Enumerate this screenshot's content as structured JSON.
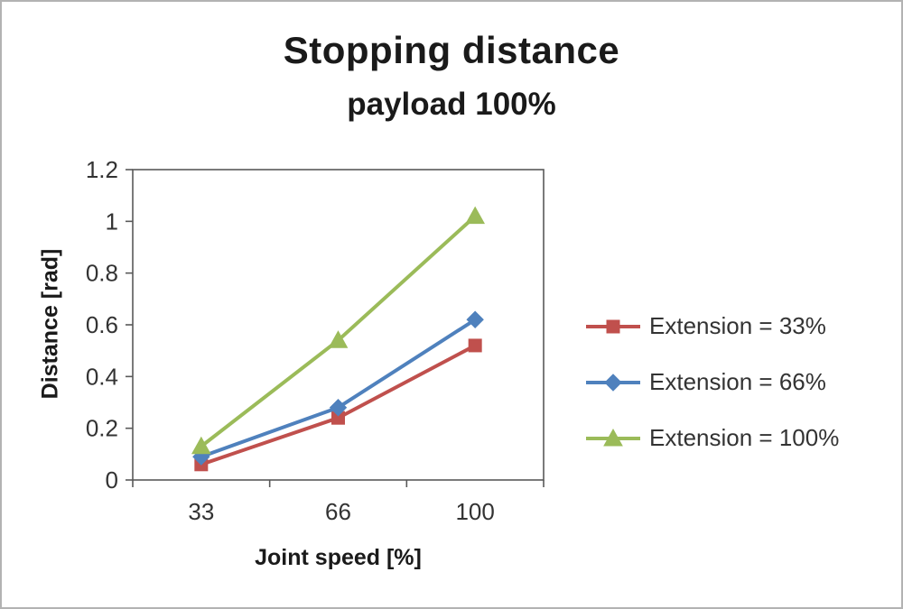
{
  "chart_data": {
    "type": "line",
    "title": "Stopping distance",
    "subtitle": "payload 100%",
    "xlabel": "Joint speed [%]",
    "ylabel": "Distance [rad]",
    "categories": [
      "33",
      "66",
      "100"
    ],
    "ylim": [
      0,
      1.2
    ],
    "ytick_step": 0.2,
    "yticks": [
      0,
      0.2,
      0.4,
      0.6,
      0.8,
      1,
      1.2
    ],
    "grid": false,
    "legend_position": "right",
    "series": [
      {
        "name": "Extension = 33%",
        "marker": "square",
        "color": "#c0504d",
        "values": [
          0.06,
          0.24,
          0.52
        ]
      },
      {
        "name": "Extension = 66%",
        "marker": "diamond",
        "color": "#4f81bd",
        "values": [
          0.09,
          0.28,
          0.62
        ]
      },
      {
        "name": "Extension = 100%",
        "marker": "triangle",
        "color": "#9bbb59",
        "values": [
          0.13,
          0.54,
          1.02
        ]
      }
    ]
  }
}
